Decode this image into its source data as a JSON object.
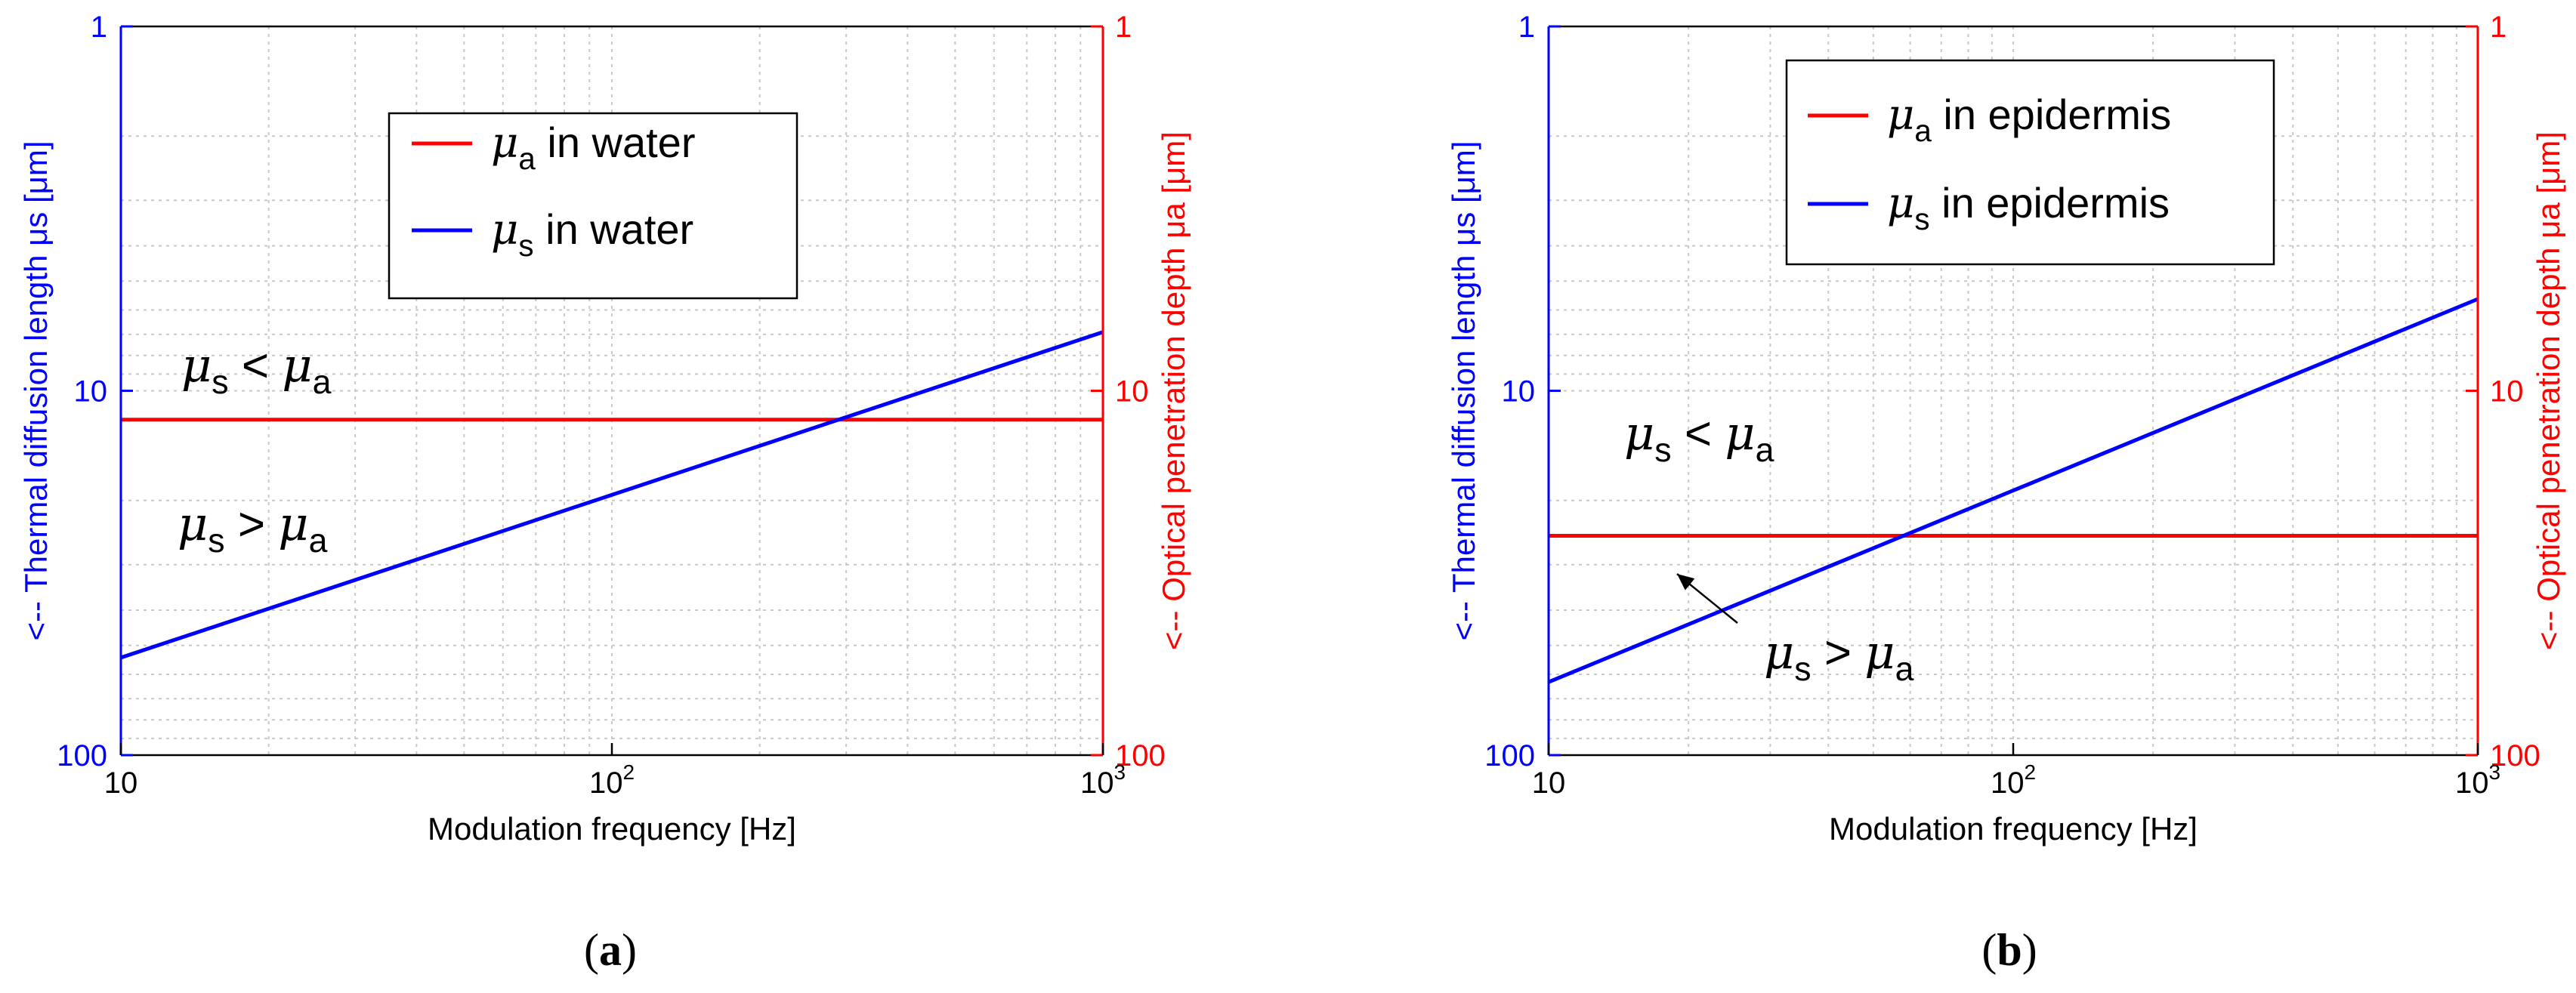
{
  "chart_data": [
    {
      "type": "line",
      "xlabel": "Modulation frequency [Hz]",
      "ylabel_left": "<-- Thermal diffusion length μs [μm]",
      "ylabel_right": "<-- Optical penetration depth μa [μm]",
      "x_scale": "log",
      "y_scale": "log",
      "y_inverted": true,
      "xlim": [
        10,
        1000
      ],
      "ylim": [
        1,
        100
      ],
      "x_ticks": [
        {
          "value": 10,
          "base": "10",
          "exp": ""
        },
        {
          "value": 100,
          "base": "10",
          "exp": "2"
        },
        {
          "value": 1000,
          "base": "10",
          "exp": "3"
        }
      ],
      "y_ticks": [
        {
          "value": 1,
          "label": "1"
        },
        {
          "value": 10,
          "label": "10"
        },
        {
          "value": 100,
          "label": "100"
        }
      ],
      "grid": true,
      "legend_position": "upper-center",
      "series": [
        {
          "name": "μa in water",
          "name_parts": [
            "μ",
            "a",
            " in water"
          ],
          "color": "#ff0000",
          "x": [
            10,
            1000
          ],
          "y": [
            12,
            12
          ]
        },
        {
          "name": "μs in water",
          "name_parts": [
            "μ",
            "s",
            " in water"
          ],
          "color": "#0000ff",
          "x": [
            10,
            1000
          ],
          "y": [
            54,
            6.9
          ]
        }
      ],
      "annotations": [
        {
          "text": "μs < μa",
          "parts": [
            "μ",
            "s",
            " < ",
            "μ",
            "a"
          ]
        },
        {
          "text": "μs > μa",
          "parts": [
            "μ",
            "s",
            " > ",
            "μ",
            "a"
          ]
        }
      ],
      "panel_label": "(a)"
    },
    {
      "type": "line",
      "xlabel": "Modulation frequency [Hz]",
      "ylabel_left": "<-- Thermal diffusion length μs [μm]",
      "ylabel_right": "<-- Optical penetration depth μa [μm]",
      "x_scale": "log",
      "y_scale": "log",
      "y_inverted": true,
      "xlim": [
        10,
        1000
      ],
      "ylim": [
        1,
        100
      ],
      "x_ticks": [
        {
          "value": 10,
          "base": "10",
          "exp": ""
        },
        {
          "value": 100,
          "base": "10",
          "exp": "2"
        },
        {
          "value": 1000,
          "base": "10",
          "exp": "3"
        }
      ],
      "y_ticks": [
        {
          "value": 1,
          "label": "1"
        },
        {
          "value": 10,
          "label": "10"
        },
        {
          "value": 100,
          "label": "100"
        }
      ],
      "grid": true,
      "legend_position": "top-left",
      "series": [
        {
          "name": "μa in epidermis",
          "name_parts": [
            "μ",
            "a",
            " in epidermis"
          ],
          "color": "#ff0000",
          "x": [
            10,
            1000
          ],
          "y": [
            25,
            25
          ]
        },
        {
          "name": "μs in epidermis",
          "name_parts": [
            "μ",
            "s",
            " in epidermis"
          ],
          "color": "#0000ff",
          "x": [
            10,
            1000
          ],
          "y": [
            63,
            5.6
          ]
        }
      ],
      "annotations": [
        {
          "text": "μs < μa",
          "parts": [
            "μ",
            "s",
            " < ",
            "μ",
            "a"
          ]
        },
        {
          "text": "μs > μa",
          "parts": [
            "μ",
            "s",
            " > ",
            "μ",
            "a"
          ]
        }
      ],
      "panel_label": "(b)"
    }
  ]
}
